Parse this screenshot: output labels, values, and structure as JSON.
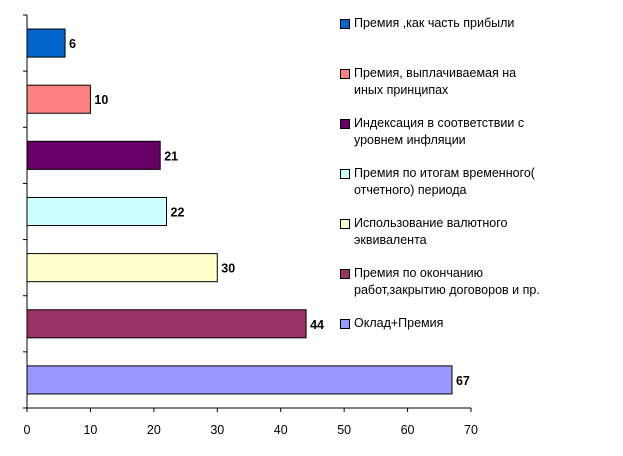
{
  "chart_data": {
    "type": "bar",
    "orientation": "horizontal",
    "categories": [
      "Премия ,как часть прибыли",
      "Премия, выплачиваемая на\nиных принципах",
      "Индексация в соответствии с\nуровнем инфляции",
      "Премия по итогам временного(\nотчетного) периода",
      "Использование валютного\nэквивалента",
      "Премия по окончанию\nработ,закрытию договоров и пр.",
      "Оклад+Премия"
    ],
    "values": [
      6,
      10,
      21,
      22,
      30,
      44,
      67
    ],
    "colors": [
      "#0066CC",
      "#FF8080",
      "#660066",
      "#CCFFFF",
      "#FFFFCC",
      "#993366",
      "#9999FF"
    ],
    "xlim": [
      0,
      70
    ],
    "xticks": [
      "0",
      "10",
      "20",
      "30",
      "40",
      "50",
      "60",
      "70"
    ],
    "data_labels": true,
    "grid": false,
    "legend_position": "right",
    "title": "",
    "xlabel": "",
    "ylabel": ""
  }
}
